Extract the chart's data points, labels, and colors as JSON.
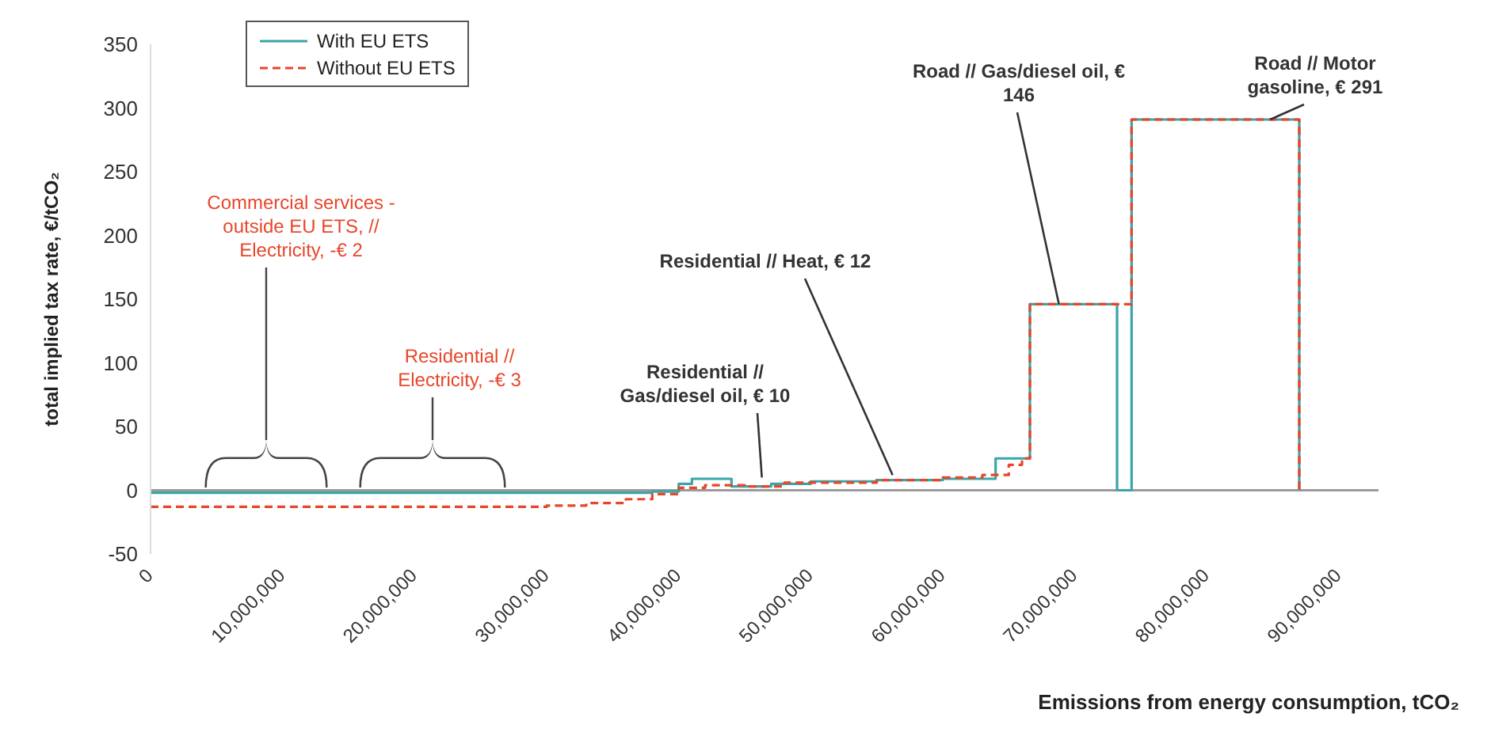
{
  "chart_data": {
    "type": "step",
    "xlabel": "Emissions from energy consumption, tCO₂",
    "ylabel": "total implied tax rate, €/tCO₂",
    "xlim": [
      0,
      93000000
    ],
    "xticks": [
      0,
      {
        "value": 10000000,
        "label": "10,000,000"
      },
      {
        "value": 20000000,
        "label": "20,000,000"
      },
      {
        "value": 30000000,
        "label": "30,000,000"
      },
      {
        "value": 40000000,
        "label": "40,000,000"
      },
      {
        "value": 50000000,
        "label": "50,000,000"
      },
      {
        "value": 60000000,
        "label": "60,000,000"
      },
      {
        "value": 70000000,
        "label": "70,000,000"
      },
      {
        "value": 80000000,
        "label": "80,000,000"
      },
      {
        "value": 90000000,
        "label": "90,000,000"
      }
    ],
    "ylim": [
      -50,
      350
    ],
    "yticks": [
      -50,
      0,
      50,
      100,
      150,
      200,
      250,
      300,
      350
    ],
    "ref_lines": [
      {
        "axis": "y",
        "value": 0,
        "color": "#9a9a9a"
      }
    ],
    "legend": "top left",
    "marker": "none",
    "series": [
      {
        "name": "With EU ETS",
        "color": "#3aa6a8",
        "line_style": "solid",
        "x": [
          0,
          38000000,
          40000000,
          41000000,
          44000000,
          47000000,
          50000000,
          55000000,
          60000000,
          64000000,
          66600000,
          73200000,
          74300000,
          87000000,
          87000001
        ],
        "values": [
          -2,
          -1,
          5,
          9,
          3,
          5,
          7,
          8,
          9,
          25,
          146,
          0,
          291,
          0,
          0
        ]
      },
      {
        "name": "Without EU ETS",
        "color": "#e8462a",
        "line_style": "dashed",
        "x": [
          0,
          30000000,
          33000000,
          36000000,
          38000000,
          40000000,
          42000000,
          45000000,
          48000000,
          55000000,
          60000000,
          63000000,
          65000000,
          66000000,
          66600000,
          74300000,
          87000000,
          87000001
        ],
        "values": [
          -13,
          -12,
          -10,
          -7,
          -3,
          2,
          4,
          3,
          6,
          8,
          10,
          12,
          20,
          25,
          146,
          291,
          0,
          0
        ]
      }
    ],
    "annotations": [
      "Commercial services - outside EU ETS, // Electricity, -€ 2",
      "Residential // Electricity, -€ 3",
      {
        "text": "Residential // Gas/diesel oil, € 10",
        "x": 46300000,
        "y": 10
      },
      {
        "text": "Residential // Heat, € 12",
        "x": 56200000,
        "y": 12
      },
      {
        "text": "Road // Gas/diesel oil, € 146",
        "x": 68800000,
        "y": 146
      },
      {
        "text": "Road // Motor gasoline, € 291",
        "x": 84800000,
        "y": 291
      }
    ]
  }
}
